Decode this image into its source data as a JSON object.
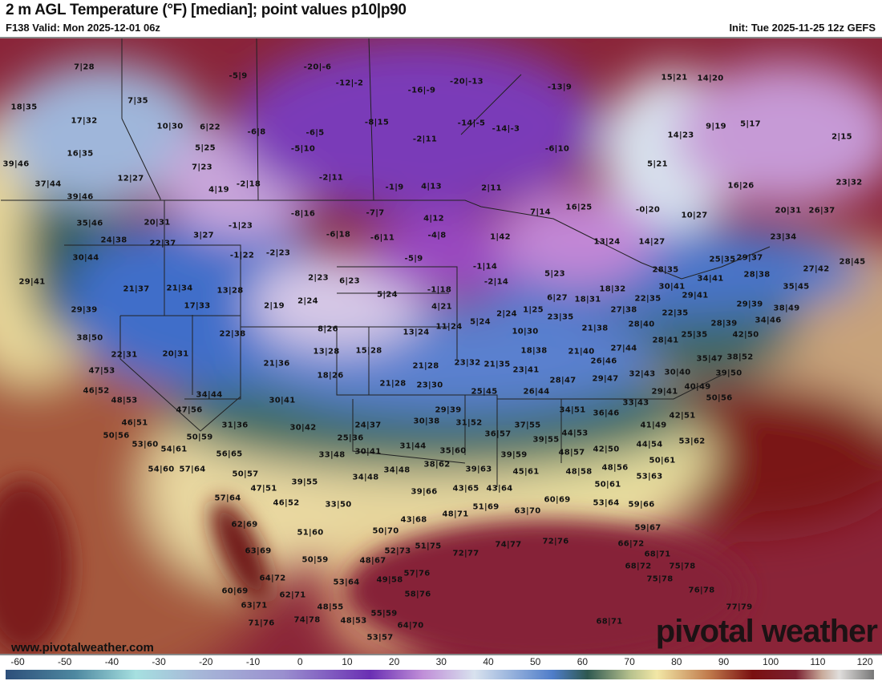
{
  "header": {
    "title": "2 m AGL Temperature (°F) [median]; point values p10|p90",
    "valid": "F138 Valid: Mon 2025-12-01 06z",
    "init": "Init: Tue 2025-11-25 12z GEFS"
  },
  "watermark": {
    "site": "www.pivotalweather.com",
    "logo": "pivotal weather"
  },
  "colorbar": {
    "units": "°F",
    "ticks": [
      "-60",
      "-50",
      "-40",
      "-30",
      "-20",
      "-10",
      "0",
      "10",
      "20",
      "30",
      "40",
      "50",
      "60",
      "70",
      "80",
      "90",
      "100",
      "110",
      "120"
    ]
  },
  "colors": {
    "cold_purple": "#7a2fb5",
    "blue": "#3f6fc9",
    "teal": "#2e5b55",
    "yellow": "#f0e6a0",
    "warm_red": "#7a1a1a",
    "gulf_maroon": "#8a2035"
  },
  "points": [
    "7|28",
    "18|35",
    "7|35",
    "17|32",
    "10|30",
    "6|22",
    "-5|9",
    "-20|-6",
    "-12|-2",
    "-16|-9",
    "-20|-13",
    "-13|9",
    "15|21",
    "14|20",
    "16|35",
    "5|25",
    "-6|8",
    "-6|5",
    "-8|15",
    "-14|-5",
    "-14|-3",
    "14|23",
    "9|19",
    "5|17",
    "2|15",
    "39|46",
    "7|23",
    "-5|10",
    "-2|11",
    "-6|10",
    "5|21",
    "12|27",
    "4|19",
    "-2|18",
    "-2|11",
    "-1|9",
    "4|13",
    "2|11",
    "16|26",
    "23|32",
    "37|44",
    "39|46",
    "35|46",
    "20|31",
    "-1|23",
    "-8|16",
    "-7|7",
    "4|12",
    "7|14",
    "16|25",
    "-0|20",
    "10|27",
    "20|31",
    "26|37",
    "24|38",
    "22|37",
    "3|27",
    "-6|18",
    "-6|11",
    "-4|8",
    "1|42",
    "13|24",
    "14|27",
    "23|34",
    "30|44",
    "-1|22",
    "-2|23",
    "-5|9",
    "27|42",
    "28|45",
    "25|35",
    "29|37",
    "28|35",
    "29|41",
    "21|37",
    "21|34",
    "13|28",
    "2|23",
    "6|23",
    "-1|14",
    "-2|14",
    "5|23",
    "34|41",
    "28|38",
    "35|45",
    "30|41",
    "29|41",
    "18|32",
    "17|33",
    "29|39",
    "2|19",
    "2|24",
    "5|24",
    "-1|18",
    "6|27",
    "18|31",
    "22|35",
    "27|38",
    "22|35",
    "29|39",
    "38|49",
    "28|40",
    "28|39",
    "34|46",
    "42|50",
    "4|21",
    "5|24",
    "2|24",
    "1|25",
    "23|35",
    "21|38",
    "38|50",
    "22|38",
    "8|26",
    "13|24",
    "11|24",
    "10|30",
    "25|35",
    "28|41",
    "22|31",
    "20|31",
    "13|28",
    "15|28",
    "18|38",
    "21|40",
    "27|44",
    "35|47",
    "38|52",
    "21|36",
    "21|28",
    "23|32",
    "21|35",
    "23|41",
    "26|46",
    "39|50",
    "47|53",
    "18|26",
    "21|28",
    "23|30",
    "28|47",
    "29|47",
    "32|43",
    "30|40",
    "46|52",
    "34|44",
    "30|41",
    "25|45",
    "26|44",
    "29|41",
    "40|49",
    "48|53",
    "47|56",
    "29|39",
    "34|51",
    "33|43",
    "50|56",
    "46|51",
    "31|36",
    "30|42",
    "24|37",
    "30|38",
    "31|52",
    "37|55",
    "36|57",
    "36|46",
    "42|51",
    "41|49",
    "50|56",
    "50|59",
    "25|36",
    "39|55",
    "44|53",
    "53|62",
    "53|60",
    "54|61",
    "44|54",
    "30|41",
    "31|44",
    "35|60",
    "56|65",
    "33|48",
    "39|59",
    "48|57",
    "42|50",
    "50|61",
    "54|60",
    "57|64",
    "38|62",
    "34|48",
    "39|63",
    "48|58",
    "48|56",
    "50|57",
    "34|48",
    "53|63",
    "47|51",
    "39|55",
    "39|66",
    "43|65",
    "43|64",
    "45|61",
    "50|61",
    "57|64",
    "46|52",
    "33|50",
    "48|71",
    "51|69",
    "60|69",
    "53|64",
    "59|66",
    "63|70",
    "43|68",
    "62|69",
    "51|60",
    "50|70",
    "59|67",
    "63|69",
    "51|75",
    "52|73",
    "72|77",
    "74|77",
    "72|76",
    "66|72",
    "68|71",
    "50|59",
    "48|67",
    "68|72",
    "75|78",
    "64|72",
    "57|76",
    "49|58",
    "53|64",
    "75|78",
    "60|69",
    "62|71",
    "58|76",
    "76|78",
    "63|71",
    "48|55",
    "55|59",
    "77|79",
    "74|78",
    "48|53",
    "64|70",
    "71|76",
    "68|71",
    "53|57"
  ]
}
